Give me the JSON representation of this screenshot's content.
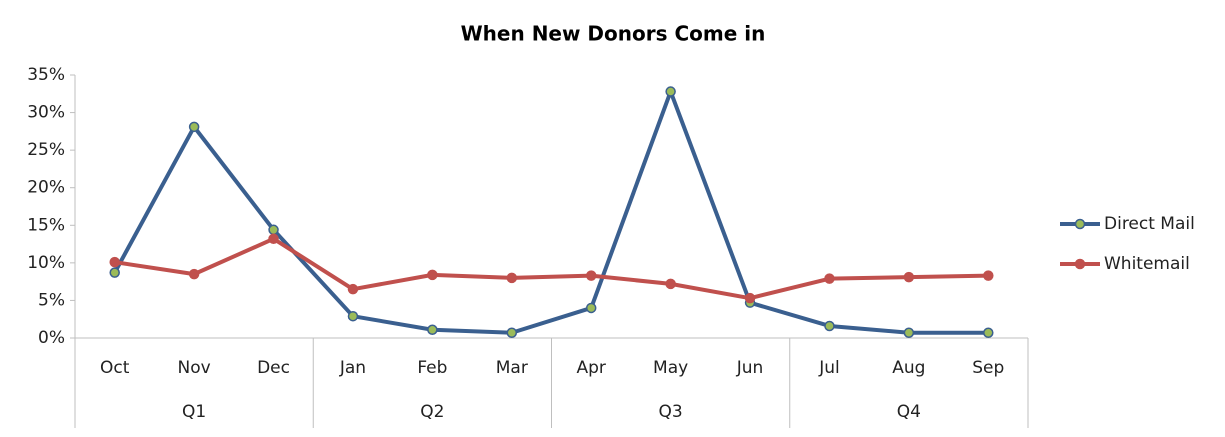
{
  "chart_data": {
    "type": "line",
    "title": "When New Donors Come in",
    "categories": [
      "Oct",
      "Nov",
      "Dec",
      "Jan",
      "Feb",
      "Mar",
      "Apr",
      "May",
      "Jun",
      "Jul",
      "Aug",
      "Sep"
    ],
    "groups": [
      "Q1",
      "Q2",
      "Q3",
      "Q4"
    ],
    "series": [
      {
        "name": "Direct Mail",
        "color": "#3a5f8f",
        "marker_color": "#9bbb59",
        "values": [
          8.7,
          28.1,
          14.4,
          2.9,
          1.1,
          0.7,
          4.0,
          32.8,
          4.7,
          1.6,
          0.7,
          0.7
        ]
      },
      {
        "name": "Whitemail",
        "color": "#c0504d",
        "marker_color": "#c0504d",
        "values": [
          10.1,
          8.5,
          13.2,
          6.5,
          8.4,
          8.0,
          8.3,
          7.2,
          5.3,
          7.9,
          8.1,
          8.3
        ]
      }
    ],
    "ylim": [
      0,
      35
    ],
    "yticks": [
      {
        "value": 0,
        "label": "0%"
      },
      {
        "value": 5,
        "label": "5%"
      },
      {
        "value": 10,
        "label": "10%"
      },
      {
        "value": 15,
        "label": "15%"
      },
      {
        "value": 20,
        "label": "20%"
      },
      {
        "value": 25,
        "label": "25%"
      },
      {
        "value": 30,
        "label": "30%"
      },
      {
        "value": 35,
        "label": "35%"
      }
    ],
    "grid": false,
    "legend": "right"
  }
}
